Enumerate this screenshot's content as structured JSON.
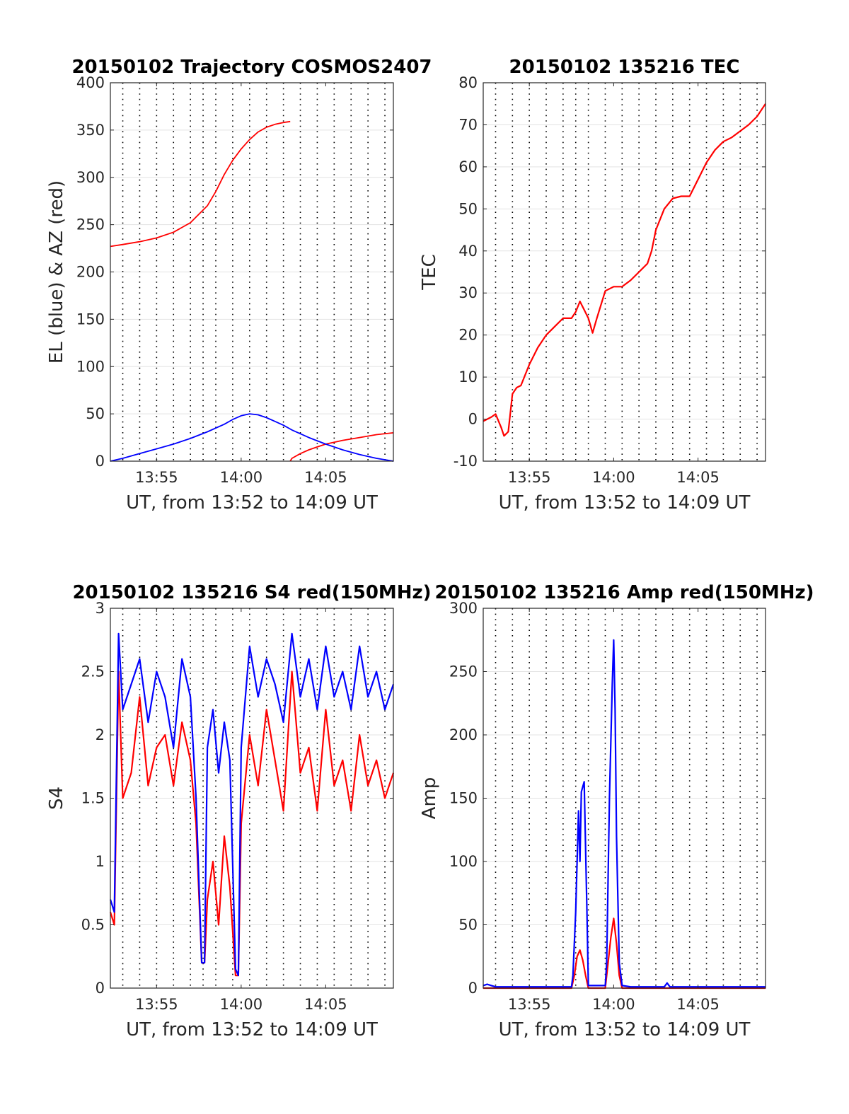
{
  "figure": {
    "background": "#ffffff"
  },
  "chart_data": [
    {
      "id": "trajectory",
      "type": "line",
      "title": "20150102 Trajectory COSMOS2407",
      "xlabel": "UT, from 13:52 to 14:09 UT",
      "ylabel": "EL (blue) & AZ (red)",
      "xlim": [
        "13:52:16",
        "14:09:00"
      ],
      "ylim": [
        0,
        400
      ],
      "x_ticks": [
        "13:55",
        "14:00",
        "14:05"
      ],
      "y_ticks": [
        0,
        50,
        100,
        150,
        200,
        250,
        300,
        350,
        400
      ],
      "grid": true,
      "series": [
        {
          "color": "#ff0000",
          "x": [
            "13:52:16",
            "13:53:00",
            "13:54:00",
            "13:55:00",
            "13:56:00",
            "13:57:00",
            "13:58:00",
            "13:58:30",
            "13:59:00",
            "13:59:30",
            "14:00:00",
            "14:00:30",
            "14:01:00",
            "14:01:30",
            "14:02:00",
            "14:02:30",
            "14:02:54"
          ],
          "y": [
            227,
            229,
            232,
            236,
            242,
            252,
            270,
            285,
            303,
            318,
            330,
            340,
            348,
            353,
            356,
            358,
            359
          ]
        },
        {
          "color": "#ff0000",
          "x": [
            "14:02:54",
            "14:03:00",
            "14:03:30",
            "14:04:00",
            "14:04:30",
            "14:05:00",
            "14:06:00",
            "14:07:00",
            "14:08:00",
            "14:09:00"
          ],
          "y": [
            0,
            3,
            8,
            12,
            15,
            18,
            22,
            25,
            28,
            30
          ]
        },
        {
          "color": "#0000ff",
          "x": [
            "13:52:16",
            "13:53:00",
            "13:54:00",
            "13:55:00",
            "13:56:00",
            "13:57:00",
            "13:58:00",
            "13:59:00",
            "13:59:30",
            "14:00:00",
            "14:00:30",
            "14:01:00",
            "14:01:30",
            "14:02:00",
            "14:02:30",
            "14:03:00",
            "14:04:00",
            "14:05:00",
            "14:06:00",
            "14:07:00",
            "14:08:00",
            "14:09:00"
          ],
          "y": [
            0,
            3,
            8,
            13,
            18,
            24,
            31,
            39,
            44,
            48,
            50,
            49,
            46,
            42,
            38,
            33,
            25,
            18,
            12,
            7,
            3,
            0
          ]
        }
      ],
      "vertical_dotted_lines": [
        "13:53:00",
        "13:54:00",
        "13:55:00",
        "13:56:00",
        "13:57:00",
        "13:57:45",
        "13:58:30",
        "13:59:30",
        "14:00:30",
        "14:01:30",
        "14:02:30",
        "14:03:30",
        "14:04:30",
        "14:05:30",
        "14:06:30",
        "14:07:30",
        "14:08:30"
      ]
    },
    {
      "id": "tec",
      "type": "line",
      "title": "20150102 135216 TEC",
      "xlabel": "UT, from 13:52 to 14:09 UT",
      "ylabel": "TEC",
      "xlim": [
        "13:52:16",
        "14:09:00"
      ],
      "ylim": [
        -10,
        80
      ],
      "x_ticks": [
        "13:55",
        "14:00",
        "14:05"
      ],
      "y_ticks": [
        -10,
        0,
        10,
        20,
        30,
        40,
        50,
        60,
        70,
        80
      ],
      "grid": true,
      "series": [
        {
          "color": "#ff0000",
          "x": [
            "13:52:16",
            "13:52:45",
            "13:53:00",
            "13:53:20",
            "13:53:30",
            "13:53:45",
            "13:54:00",
            "13:54:15",
            "13:54:30",
            "13:55:00",
            "13:55:30",
            "13:56:00",
            "13:56:30",
            "13:57:00",
            "13:57:30",
            "13:57:45",
            "13:58:00",
            "13:58:15",
            "13:58:30",
            "13:58:45",
            "13:59:00",
            "13:59:30",
            "14:00:00",
            "14:00:30",
            "14:01:00",
            "14:01:30",
            "14:02:00",
            "14:02:15",
            "14:02:30",
            "14:03:00",
            "14:03:30",
            "14:04:00",
            "14:04:30",
            "14:05:00",
            "14:05:30",
            "14:06:00",
            "14:06:30",
            "14:07:00",
            "14:07:30",
            "14:08:00",
            "14:08:30",
            "14:09:00"
          ],
          "y": [
            -0.5,
            0.5,
            1.2,
            -2,
            -4,
            -3,
            6,
            7.5,
            8,
            13,
            17,
            20,
            22,
            24,
            24,
            25.5,
            28,
            26,
            24,
            20.5,
            24,
            30.5,
            31.5,
            31.5,
            33,
            35,
            37,
            40,
            45,
            50,
            52.5,
            53,
            53,
            57,
            61,
            64,
            66,
            67,
            68.5,
            70,
            72,
            75
          ]
        }
      ],
      "vertical_dotted_lines": [
        "13:53:00",
        "13:54:00",
        "13:55:00",
        "13:56:00",
        "13:57:00",
        "13:57:45",
        "13:58:30",
        "13:59:30",
        "14:00:30",
        "14:01:30",
        "14:02:30",
        "14:03:30",
        "14:04:30",
        "14:05:30",
        "14:06:30",
        "14:07:30",
        "14:08:30"
      ]
    },
    {
      "id": "s4",
      "type": "line",
      "title": "20150102 135216 S4 red(150MHz)",
      "xlabel": "UT, from 13:52 to 14:09 UT",
      "ylabel": "S4",
      "xlim": [
        "13:52:16",
        "14:09:00"
      ],
      "ylim": [
        0,
        3
      ],
      "x_ticks": [
        "13:55",
        "14:00",
        "14:05"
      ],
      "y_ticks": [
        0,
        0.5,
        1,
        1.5,
        2,
        2.5,
        3
      ],
      "grid": true,
      "series": [
        {
          "color": "#ff0000",
          "x": [
            "13:52:16",
            "13:52:30",
            "13:52:45",
            "13:53:00",
            "13:53:30",
            "13:54:00",
            "13:54:30",
            "13:55:00",
            "13:55:30",
            "13:56:00",
            "13:56:30",
            "13:57:00",
            "13:57:20",
            "13:57:40",
            "13:57:50",
            "13:58:00",
            "13:58:20",
            "13:58:40",
            "13:59:00",
            "13:59:20",
            "13:59:40",
            "13:59:50",
            "14:00:00",
            "14:00:30",
            "14:01:00",
            "14:01:30",
            "14:02:00",
            "14:02:30",
            "14:03:00",
            "14:03:30",
            "14:04:00",
            "14:04:30",
            "14:05:00",
            "14:05:30",
            "14:06:00",
            "14:06:30",
            "14:07:00",
            "14:07:30",
            "14:08:00",
            "14:08:30",
            "14:09:00"
          ],
          "y": [
            0.6,
            0.5,
            2.5,
            1.5,
            1.7,
            2.3,
            1.6,
            1.9,
            2.0,
            1.6,
            2.1,
            1.8,
            1.3,
            0.2,
            0.2,
            0.7,
            1.0,
            0.5,
            1.2,
            0.8,
            0.1,
            0.1,
            1.3,
            2.0,
            1.6,
            2.2,
            1.8,
            1.4,
            2.5,
            1.7,
            1.9,
            1.4,
            2.2,
            1.6,
            1.8,
            1.4,
            2.0,
            1.6,
            1.8,
            1.5,
            1.7
          ]
        },
        {
          "color": "#0000ff",
          "x": [
            "13:52:16",
            "13:52:30",
            "13:52:45",
            "13:53:00",
            "13:53:30",
            "13:54:00",
            "13:54:30",
            "13:55:00",
            "13:55:30",
            "13:56:00",
            "13:56:30",
            "13:57:00",
            "13:57:20",
            "13:57:40",
            "13:57:50",
            "13:58:00",
            "13:58:20",
            "13:58:40",
            "13:59:00",
            "13:59:20",
            "13:59:40",
            "13:59:50",
            "14:00:00",
            "14:00:30",
            "14:01:00",
            "14:01:30",
            "14:02:00",
            "14:02:30",
            "14:03:00",
            "14:03:30",
            "14:04:00",
            "14:04:30",
            "14:05:00",
            "14:05:30",
            "14:06:00",
            "14:06:30",
            "14:07:00",
            "14:07:30",
            "14:08:00",
            "14:08:30",
            "14:09:00"
          ],
          "y": [
            0.7,
            0.6,
            2.8,
            2.2,
            2.4,
            2.6,
            2.1,
            2.5,
            2.3,
            1.9,
            2.6,
            2.3,
            1.5,
            0.2,
            0.2,
            1.9,
            2.2,
            1.7,
            2.1,
            1.8,
            0.15,
            0.1,
            1.9,
            2.7,
            2.3,
            2.6,
            2.4,
            2.1,
            2.8,
            2.3,
            2.6,
            2.2,
            2.7,
            2.3,
            2.5,
            2.2,
            2.7,
            2.3,
            2.5,
            2.2,
            2.4
          ]
        }
      ],
      "vertical_dotted_lines": [
        "13:53:00",
        "13:54:00",
        "13:55:00",
        "13:56:00",
        "13:57:00",
        "13:57:45",
        "13:58:30",
        "13:59:30",
        "14:00:30",
        "14:01:30",
        "14:02:30",
        "14:03:30",
        "14:04:30",
        "14:05:30",
        "14:06:30",
        "14:07:30",
        "14:08:30"
      ]
    },
    {
      "id": "amp",
      "type": "line",
      "title": "20150102 135216 Amp red(150MHz)",
      "xlabel": "UT, from 13:52 to 14:09 UT",
      "ylabel": "Amp",
      "xlim": [
        "13:52:16",
        "14:09:00"
      ],
      "ylim": [
        0,
        300
      ],
      "x_ticks": [
        "13:55",
        "14:00",
        "14:05"
      ],
      "y_ticks": [
        0,
        50,
        100,
        150,
        200,
        250,
        300
      ],
      "grid": true,
      "series": [
        {
          "color": "#ff0000",
          "x": [
            "13:52:16",
            "13:57:30",
            "13:57:40",
            "13:57:50",
            "13:58:00",
            "13:58:10",
            "13:58:20",
            "13:58:30",
            "13:59:30",
            "13:59:40",
            "13:59:50",
            "14:00:00",
            "14:00:10",
            "14:00:20",
            "14:00:30",
            "14:09:00"
          ],
          "y": [
            0,
            0,
            10,
            25,
            30,
            22,
            10,
            0,
            0,
            20,
            40,
            55,
            35,
            10,
            0,
            0
          ]
        },
        {
          "color": "#0000ff",
          "x": [
            "13:52:16",
            "13:52:30",
            "13:52:45",
            "13:53:00",
            "13:55:00",
            "13:57:30",
            "13:57:35",
            "13:57:45",
            "13:57:55",
            "13:58:00",
            "13:58:05",
            "13:58:15",
            "13:58:25",
            "13:58:30",
            "13:59:30",
            "13:59:35",
            "13:59:45",
            "13:59:55",
            "14:00:00",
            "14:00:05",
            "14:00:10",
            "14:00:20",
            "14:00:30",
            "14:01:00",
            "14:03:00",
            "14:03:10",
            "14:03:20",
            "14:09:00"
          ],
          "y": [
            2,
            3,
            2,
            1,
            1,
            1,
            10,
            60,
            140,
            100,
            155,
            163,
            60,
            2,
            2,
            20,
            150,
            240,
            275,
            220,
            120,
            20,
            2,
            1,
            1,
            4,
            1,
            1
          ]
        }
      ],
      "vertical_dotted_lines": [
        "13:53:00",
        "13:54:00",
        "13:55:00",
        "13:56:00",
        "13:57:00",
        "13:57:45",
        "13:58:30",
        "13:59:30",
        "14:00:30",
        "14:01:30",
        "14:02:30",
        "14:03:30",
        "14:04:30",
        "14:05:30",
        "14:06:30",
        "14:07:30",
        "14:08:30"
      ]
    }
  ]
}
